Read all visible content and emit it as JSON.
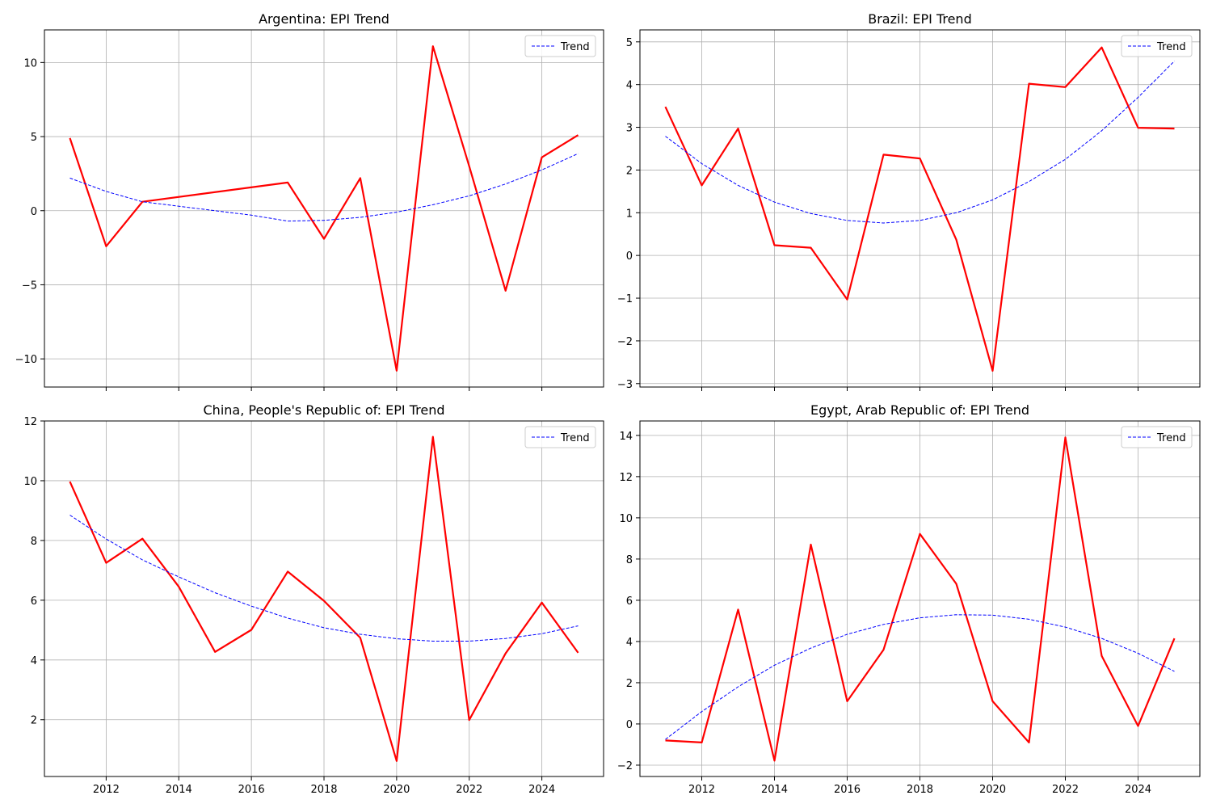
{
  "chart_data": [
    {
      "type": "line",
      "title": "Argentina: EPI Trend",
      "x": [
        2011,
        2012,
        2013,
        2017,
        2018,
        2019,
        2020,
        2021,
        2022,
        2023,
        2024,
        2025
      ],
      "series": [
        {
          "color": "#ff0000",
          "style": "solid",
          "values": [
            4.9,
            -2.4,
            0.6,
            1.9,
            -1.9,
            2.2,
            -10.8,
            11.1,
            3.0,
            -5.4,
            3.6,
            5.1
          ]
        },
        {
          "name": "Trend",
          "color": "#0000ff",
          "style": "dashed",
          "x": [
            2011,
            2012,
            2013,
            2014,
            2015,
            2016,
            2017,
            2018,
            2019,
            2020,
            2021,
            2022,
            2023,
            2024,
            2025
          ],
          "values": [
            2.2,
            1.3,
            0.6,
            0.3,
            0.0,
            -0.3,
            -0.7,
            -0.65,
            -0.45,
            -0.1,
            0.4,
            1.0,
            1.8,
            2.75,
            3.85
          ]
        }
      ],
      "xlim": [
        2010.3,
        2025.7
      ],
      "ylim": [
        -11.9,
        12.2
      ],
      "xticks": [
        2012,
        2014,
        2016,
        2018,
        2020,
        2022,
        2024
      ],
      "yticks": [
        -10,
        -5,
        0,
        5,
        10
      ],
      "ytick_labels": [
        "−10",
        "−5",
        "0",
        "5",
        "10"
      ],
      "show_xtick_labels": false,
      "grid": true,
      "legend": "upper-right"
    },
    {
      "type": "line",
      "title": "Brazil: EPI Trend",
      "x": [
        2011,
        2012,
        2013,
        2014,
        2015,
        2016,
        2017,
        2018,
        2019,
        2020,
        2021,
        2022,
        2023,
        2024,
        2025
      ],
      "series": [
        {
          "color": "#ff0000",
          "style": "solid",
          "values": [
            3.48,
            1.64,
            2.97,
            0.24,
            0.18,
            -1.03,
            2.36,
            2.27,
            0.37,
            -2.7,
            4.02,
            3.94,
            4.87,
            2.99,
            2.97
          ]
        },
        {
          "name": "Trend",
          "color": "#0000ff",
          "style": "dashed",
          "values": [
            2.79,
            2.15,
            1.64,
            1.25,
            0.98,
            0.82,
            0.76,
            0.82,
            1.0,
            1.3,
            1.73,
            2.25,
            2.92,
            3.7,
            4.55
          ]
        }
      ],
      "xlim": [
        2010.3,
        2025.7
      ],
      "ylim": [
        -3.08,
        5.28
      ],
      "xticks": [
        2012,
        2014,
        2016,
        2018,
        2020,
        2022,
        2024
      ],
      "yticks": [
        -3,
        -2,
        -1,
        0,
        1,
        2,
        3,
        4,
        5
      ],
      "ytick_labels": [
        "−3",
        "−2",
        "−1",
        "0",
        "1",
        "2",
        "3",
        "4",
        "5"
      ],
      "show_xtick_labels": false,
      "grid": true,
      "legend": "upper-right"
    },
    {
      "type": "line",
      "title": "China, People's Republic of: EPI Trend",
      "x": [
        2011,
        2012,
        2013,
        2014,
        2015,
        2016,
        2017,
        2018,
        2019,
        2020,
        2021,
        2022,
        2023,
        2024,
        2025
      ],
      "series": [
        {
          "color": "#ff0000",
          "style": "solid",
          "values": [
            9.97,
            7.25,
            8.06,
            6.45,
            4.27,
            5.01,
            6.96,
            5.98,
            4.74,
            0.62,
            11.47,
            1.99,
            4.22,
            5.92,
            4.24
          ]
        },
        {
          "name": "Trend",
          "color": "#0000ff",
          "style": "dashed",
          "values": [
            8.85,
            8.05,
            7.35,
            6.78,
            6.25,
            5.8,
            5.4,
            5.08,
            4.86,
            4.71,
            4.63,
            4.63,
            4.72,
            4.88,
            5.14
          ]
        }
      ],
      "xlim": [
        2010.3,
        2025.7
      ],
      "ylim": [
        0.1,
        12.0
      ],
      "xticks": [
        2012,
        2014,
        2016,
        2018,
        2020,
        2022,
        2024
      ],
      "yticks": [
        2,
        4,
        6,
        8,
        10,
        12
      ],
      "ytick_labels": [
        "2",
        "4",
        "6",
        "8",
        "10",
        "12"
      ],
      "show_xtick_labels": true,
      "grid": true,
      "legend": "upper-right"
    },
    {
      "type": "line",
      "title": "Egypt, Arab Republic of: EPI Trend",
      "x": [
        2011,
        2012,
        2013,
        2014,
        2015,
        2016,
        2017,
        2018,
        2019,
        2020,
        2021,
        2022,
        2023,
        2024,
        2025
      ],
      "series": [
        {
          "color": "#ff0000",
          "style": "solid",
          "values": [
            -0.8,
            -0.9,
            5.55,
            -1.78,
            8.7,
            1.1,
            3.6,
            9.22,
            6.8,
            1.1,
            -0.9,
            13.9,
            3.3,
            -0.1,
            4.15
          ]
        },
        {
          "name": "Trend",
          "color": "#0000ff",
          "style": "dashed",
          "values": [
            -0.75,
            0.6,
            1.8,
            2.85,
            3.68,
            4.35,
            4.83,
            5.15,
            5.3,
            5.28,
            5.08,
            4.7,
            4.15,
            3.43,
            2.55
          ]
        }
      ],
      "xlim": [
        2010.3,
        2025.7
      ],
      "ylim": [
        -2.55,
        14.7
      ],
      "xticks": [
        2012,
        2014,
        2016,
        2018,
        2020,
        2022,
        2024
      ],
      "yticks": [
        -2,
        0,
        2,
        4,
        6,
        8,
        10,
        12,
        14
      ],
      "ytick_labels": [
        "−2",
        "0",
        "2",
        "4",
        "6",
        "8",
        "10",
        "12",
        "14"
      ],
      "show_xtick_labels": true,
      "grid": true,
      "legend": "upper-right"
    }
  ]
}
